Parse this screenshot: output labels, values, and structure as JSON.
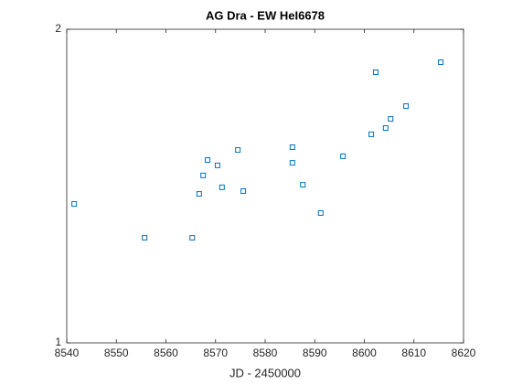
{
  "chart_data": {
    "type": "scatter",
    "title": "AG Dra - EW HeI6678",
    "x_label": "JD - 2450000",
    "x": [
      8541.5,
      8555.7,
      8565.3,
      8566.7,
      8567.5,
      8568.4,
      8570.4,
      8571.3,
      8574.5,
      8575.6,
      8585.5,
      8585.5,
      8587.6,
      8591.2,
      8595.7,
      8601.4,
      8602.3,
      8604.3,
      8605.3,
      8608.4,
      8615.4
    ],
    "values": [
      1.443,
      1.335,
      1.335,
      1.475,
      1.534,
      1.583,
      1.566,
      1.496,
      1.615,
      1.484,
      1.624,
      1.574,
      1.504,
      1.414,
      1.595,
      1.665,
      1.863,
      1.685,
      1.714,
      1.755,
      1.895
    ],
    "color": "#0072bd",
    "xlim": [
      8540,
      8620
    ],
    "xticks": [
      8540,
      8550,
      8560,
      8570,
      8580,
      8590,
      8600,
      8610,
      8620
    ],
    "ylim": [
      1,
      2
    ],
    "yticks": [
      1,
      2
    ],
    "grid": false
  }
}
